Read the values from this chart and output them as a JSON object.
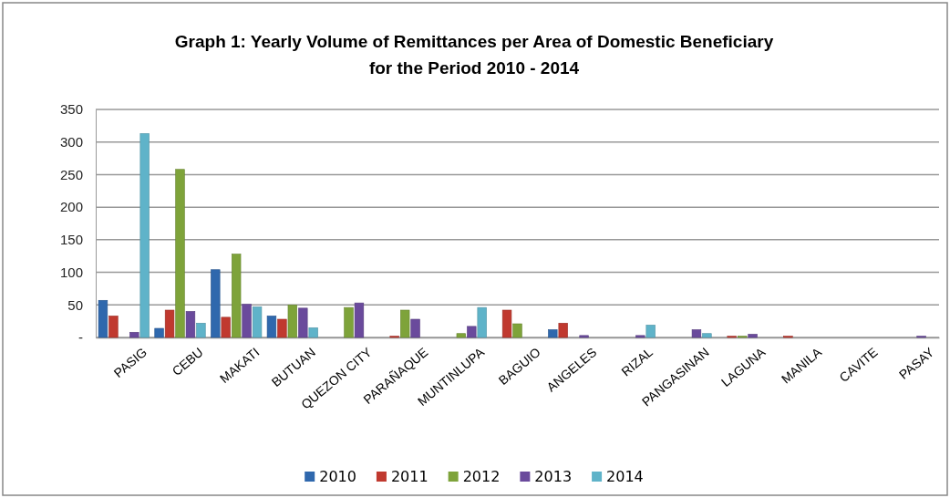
{
  "chart_data": {
    "type": "bar",
    "title": "Graph 1: Yearly Volume of Remittances per Area of Domestic Beneficiary for the Period 2010 - 2014",
    "categories": [
      "PASIG",
      "CEBU",
      "MAKATI",
      "BUTUAN",
      "QUEZON CITY",
      "PARAÑAQUE",
      "MUNTINLUPA",
      "BAGUIO",
      "ANGELES",
      "RIZAL",
      "PANGASINAN",
      "LAGUNA",
      "MANILA",
      "CAVITE",
      "PASAY"
    ],
    "series": [
      {
        "name": "2010",
        "color": "#2f68ad",
        "values": [
          57,
          14,
          104,
          33,
          0,
          0,
          0,
          0,
          12,
          0,
          0,
          0,
          0,
          0,
          0
        ]
      },
      {
        "name": "2011",
        "color": "#c0392f",
        "values": [
          33,
          42,
          31,
          28,
          0,
          2,
          0,
          42,
          22,
          0,
          0,
          2,
          2,
          0,
          0
        ]
      },
      {
        "name": "2012",
        "color": "#7ea33a",
        "values": [
          0,
          258,
          128,
          50,
          46,
          42,
          6,
          21,
          0,
          0,
          0,
          2,
          0,
          0,
          0
        ]
      },
      {
        "name": "2013",
        "color": "#6a4a9c",
        "values": [
          8,
          40,
          51,
          45,
          53,
          28,
          17,
          0,
          3,
          3,
          12,
          5,
          0,
          0,
          2
        ]
      },
      {
        "name": "2014",
        "color": "#5fb3c9",
        "values": [
          313,
          22,
          47,
          15,
          0,
          0,
          46,
          0,
          0,
          19,
          6,
          0,
          0,
          0,
          0
        ]
      }
    ],
    "ylim": [
      0,
      350
    ],
    "yticks": [
      {
        "value": 0,
        "label": "-"
      },
      50,
      100,
      150,
      200,
      250,
      300,
      350
    ],
    "grid": "y",
    "legend": "bottom"
  }
}
